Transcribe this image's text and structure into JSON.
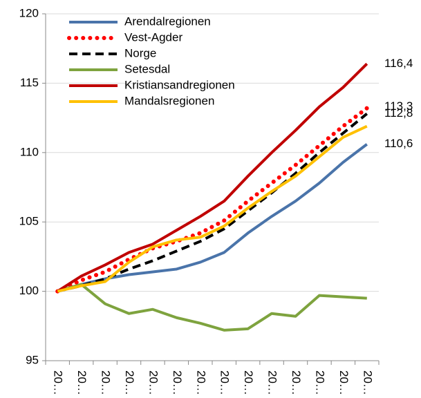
{
  "chart_data": {
    "type": "line",
    "categories": [
      "20…",
      "20…",
      "20…",
      "20…",
      "20…",
      "20…",
      "20…",
      "20…",
      "20…",
      "20…",
      "20…",
      "20…",
      "20…",
      "20…"
    ],
    "series": [
      {
        "name": "Arendalregionen",
        "color": "#4a74aa",
        "dash": "solid",
        "values": [
          100,
          100.5,
          100.9,
          101.2,
          101.4,
          101.6,
          102.1,
          102.8,
          104.2,
          105.4,
          106.5,
          107.8,
          109.3,
          110.6
        ]
      },
      {
        "name": "Vest-Agder",
        "color": "#ff0000",
        "dash": "dotted",
        "values": [
          100,
          100.8,
          101.4,
          102.3,
          103.1,
          103.6,
          104.2,
          105.1,
          106.5,
          107.8,
          109.1,
          110.5,
          111.9,
          113.2
        ]
      },
      {
        "name": "Norge",
        "color": "#000000",
        "dash": "dashed",
        "values": [
          100,
          100.4,
          100.9,
          101.6,
          102.2,
          102.9,
          103.6,
          104.5,
          105.8,
          107.1,
          108.5,
          110.0,
          111.4,
          112.8
        ]
      },
      {
        "name": "Setesdal",
        "color": "#7ea33e",
        "dash": "solid",
        "values": [
          100,
          100.5,
          99.1,
          98.4,
          98.7,
          98.1,
          97.7,
          97.2,
          97.3,
          98.4,
          98.2,
          99.7,
          99.6,
          99.5
        ]
      },
      {
        "name": "Kristiansandregionen",
        "color": "#c00000",
        "dash": "solid",
        "values": [
          100,
          101.1,
          101.9,
          102.8,
          103.4,
          104.4,
          105.4,
          106.5,
          108.3,
          110.0,
          111.6,
          113.3,
          114.7,
          116.4
        ]
      },
      {
        "name": "Mandalsregionen",
        "color": "#ffc000",
        "dash": "solid",
        "values": [
          100,
          100.4,
          100.7,
          102.1,
          103.2,
          103.7,
          103.9,
          104.7,
          106.0,
          107.2,
          108.3,
          109.7,
          111.1,
          111.9
        ]
      }
    ],
    "annotations": [
      {
        "text": "116,4",
        "value": 116.4
      },
      {
        "text": "113,3",
        "value": 113.3
      },
      {
        "text": "112,8",
        "value": 112.8
      },
      {
        "text": "110,6",
        "value": 110.6
      }
    ],
    "ylim": [
      95,
      120
    ],
    "yticks": [
      95,
      100,
      105,
      110,
      115,
      120
    ],
    "grid": true,
    "legend": "upper left"
  }
}
